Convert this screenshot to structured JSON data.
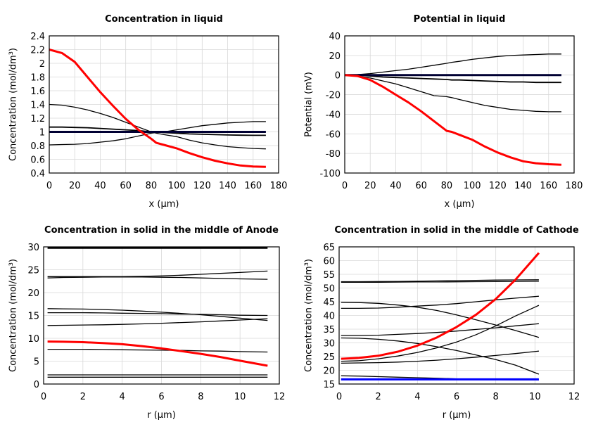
{
  "chart_data": [
    {
      "type": "line",
      "title": "Concentration in liquid",
      "xlabel": "x (µm)",
      "ylabel": "Concentration (mol/dm³)",
      "xlim": [
        0,
        180
      ],
      "ylim": [
        0.4,
        2.4
      ],
      "xticks": [
        0,
        20,
        40,
        60,
        80,
        100,
        120,
        140,
        160,
        180
      ],
      "yticks": [
        0.4,
        0.6,
        0.8,
        1,
        1.2,
        1.4,
        1.6,
        1.8,
        2,
        2.2,
        2.4
      ],
      "grid": true,
      "x": [
        0,
        10,
        20,
        30,
        40,
        50,
        60,
        70,
        80,
        84,
        90,
        100,
        110,
        120,
        130,
        140,
        150,
        160,
        170
      ],
      "series": [
        {
          "color": "#000000",
          "width": 1.3,
          "values": [
            1.4,
            1.39,
            1.36,
            1.32,
            1.27,
            1.21,
            1.14,
            1.07,
            1.0,
            0.98,
            0.96,
            0.93,
            0.88,
            0.84,
            0.81,
            0.785,
            0.77,
            0.758,
            0.752
          ]
        },
        {
          "color": "#000000",
          "width": 1.8,
          "values": [
            1.07,
            1.07,
            1.065,
            1.06,
            1.05,
            1.04,
            1.03,
            1.02,
            1.0,
            1.0,
            0.99,
            0.98,
            0.97,
            0.965,
            0.96,
            0.955,
            0.952,
            0.95,
            0.95
          ]
        },
        {
          "color": "#000000",
          "width": 1.3,
          "values": [
            0.81,
            0.815,
            0.82,
            0.83,
            0.85,
            0.87,
            0.9,
            0.94,
            0.98,
            0.99,
            1.0,
            1.03,
            1.06,
            1.09,
            1.11,
            1.13,
            1.14,
            1.15,
            1.15
          ]
        },
        {
          "color": "#000033",
          "width": 3,
          "values": [
            1,
            1,
            1,
            1,
            1,
            1,
            1,
            1,
            1,
            1,
            1,
            1,
            1,
            1,
            1,
            1,
            1,
            1,
            1
          ]
        },
        {
          "color": "#ff0000",
          "width": 3,
          "values": [
            2.2,
            2.15,
            2.02,
            1.8,
            1.58,
            1.38,
            1.19,
            1.03,
            0.9,
            0.84,
            0.81,
            0.76,
            0.69,
            0.63,
            0.58,
            0.54,
            0.51,
            0.495,
            0.49
          ]
        }
      ]
    },
    {
      "type": "line",
      "title": "Potential in liquid",
      "xlabel": "x (µm)",
      "ylabel": "Potential (mV)",
      "xlim": [
        0,
        180
      ],
      "ylim": [
        -100,
        40
      ],
      "xticks": [
        0,
        20,
        40,
        60,
        80,
        100,
        120,
        140,
        160,
        180
      ],
      "yticks": [
        -100,
        -80,
        -60,
        -40,
        -20,
        0,
        20,
        40
      ],
      "grid": true,
      "x": [
        0,
        10,
        20,
        30,
        40,
        50,
        60,
        70,
        80,
        84,
        90,
        100,
        110,
        120,
        130,
        140,
        150,
        160,
        170
      ],
      "series": [
        {
          "color": "#000000",
          "width": 1.3,
          "values": [
            0,
            0.5,
            1.5,
            3,
            4.5,
            6,
            8,
            10,
            12,
            13,
            14,
            16,
            17.5,
            19,
            20,
            20.5,
            21,
            21.5,
            21.5
          ]
        },
        {
          "color": "#000000",
          "width": 1.8,
          "values": [
            0,
            0,
            -1,
            -2,
            -2.5,
            -3,
            -3.5,
            -4,
            -4.5,
            -5,
            -5,
            -5.5,
            -6,
            -6.5,
            -7,
            -7,
            -7.5,
            -7.5,
            -7.5
          ]
        },
        {
          "color": "#000000",
          "width": 1.3,
          "values": [
            0,
            -1,
            -3,
            -6,
            -9,
            -13,
            -17,
            -21,
            -22,
            -23,
            -25,
            -28,
            -31,
            -33,
            -35,
            -36,
            -37,
            -37.5,
            -37.5
          ]
        },
        {
          "color": "#000033",
          "width": 3,
          "values": [
            0,
            0,
            0,
            0,
            0,
            0,
            0,
            0,
            0,
            0,
            0,
            0,
            0,
            0,
            0,
            0,
            0,
            0,
            0
          ]
        },
        {
          "color": "#ff0000",
          "width": 3,
          "values": [
            0,
            -1,
            -5,
            -12,
            -20,
            -28,
            -37,
            -47,
            -57,
            -58,
            -61,
            -66,
            -73,
            -79,
            -84,
            -88,
            -90,
            -91,
            -91.5
          ]
        }
      ]
    },
    {
      "type": "line",
      "title": "Concentration in solid in the middle of Anode",
      "xlabel": "r (µm)",
      "ylabel": "Concentration (mol/dm³)",
      "xlim": [
        0,
        12
      ],
      "ylim": [
        0,
        30
      ],
      "xticks": [
        0,
        2,
        4,
        6,
        8,
        10,
        12
      ],
      "yticks": [
        0,
        5,
        10,
        15,
        20,
        25,
        30
      ],
      "grid": true,
      "x": [
        0.2,
        1,
        2,
        3,
        4,
        5,
        6,
        7,
        8,
        9,
        10,
        11.4
      ],
      "series": [
        {
          "color": "#000000",
          "width": 3,
          "values": [
            29.8,
            29.8,
            29.8,
            29.8,
            29.8,
            29.8,
            29.8,
            29.8,
            29.8,
            29.8,
            29.8,
            29.8
          ]
        },
        {
          "color": "#000000",
          "width": 1.3,
          "values": [
            23.5,
            23.5,
            23.5,
            23.5,
            23.5,
            23.55,
            23.65,
            23.8,
            24.0,
            24.2,
            24.4,
            24.7
          ]
        },
        {
          "color": "#000000",
          "width": 1.3,
          "values": [
            23.2,
            23.3,
            23.35,
            23.4,
            23.4,
            23.4,
            23.35,
            23.3,
            23.2,
            23.1,
            23.0,
            22.9
          ]
        },
        {
          "color": "#000000",
          "width": 1.3,
          "values": [
            16.5,
            16.45,
            16.4,
            16.3,
            16.15,
            15.95,
            15.7,
            15.45,
            15.15,
            14.8,
            14.4,
            13.9
          ]
        },
        {
          "color": "#000000",
          "width": 1.3,
          "values": [
            15.6,
            15.6,
            15.6,
            15.55,
            15.5,
            15.45,
            15.4,
            15.3,
            15.25,
            15.15,
            15.05,
            15.0
          ]
        },
        {
          "color": "#000000",
          "width": 1.3,
          "values": [
            12.8,
            12.85,
            12.9,
            12.95,
            13.05,
            13.15,
            13.3,
            13.45,
            13.6,
            13.8,
            14.0,
            14.3
          ]
        },
        {
          "color": "#000000",
          "width": 1.3,
          "values": [
            7.6,
            7.6,
            7.6,
            7.55,
            7.5,
            7.45,
            7.4,
            7.35,
            7.25,
            7.2,
            7.1,
            7.0
          ]
        },
        {
          "color": "#000000",
          "width": 1.3,
          "values": [
            2.0,
            2.0,
            2.0,
            2.0,
            2.0,
            2.0,
            2.0,
            2.0,
            2.0,
            2.0,
            2.0,
            2.0
          ]
        },
        {
          "color": "#000000",
          "width": 1.3,
          "values": [
            1.5,
            1.5,
            1.5,
            1.5,
            1.5,
            1.5,
            1.5,
            1.5,
            1.5,
            1.5,
            1.5,
            1.5
          ]
        },
        {
          "color": "#ff0000",
          "width": 3,
          "values": [
            9.3,
            9.25,
            9.15,
            8.95,
            8.7,
            8.3,
            7.8,
            7.2,
            6.6,
            5.9,
            5.1,
            4.0
          ]
        }
      ]
    },
    {
      "type": "line",
      "title": "Concentration in solid in the middle of Cathode",
      "xlabel": "r (µm)",
      "ylabel": "Concentration (mol/dm³)",
      "xlim": [
        0,
        12
      ],
      "ylim": [
        15,
        65
      ],
      "xticks": [
        0,
        2,
        4,
        6,
        8,
        10,
        12
      ],
      "yticks": [
        15,
        20,
        25,
        30,
        35,
        40,
        45,
        50,
        55,
        60,
        65
      ],
      "grid": true,
      "x": [
        0.1,
        1,
        2,
        3,
        4,
        5,
        6,
        7,
        8,
        9,
        10.2
      ],
      "series": [
        {
          "color": "#000000",
          "width": 1.3,
          "values": [
            52.3,
            52.3,
            52.35,
            52.4,
            52.5,
            52.6,
            52.7,
            52.8,
            52.9,
            52.95,
            53.0
          ]
        },
        {
          "color": "#000000",
          "width": 1.3,
          "values": [
            52.1,
            52.1,
            52.1,
            52.15,
            52.2,
            52.2,
            52.25,
            52.3,
            52.35,
            52.4,
            52.5
          ]
        },
        {
          "color": "#000000",
          "width": 1.3,
          "values": [
            44.8,
            44.7,
            44.4,
            43.8,
            43,
            41.8,
            40.2,
            38.4,
            36.5,
            34.5,
            32
          ]
        },
        {
          "color": "#000000",
          "width": 1.3,
          "values": [
            42.6,
            42.6,
            42.7,
            43,
            43.4,
            43.8,
            44.3,
            45,
            45.7,
            46.3,
            47
          ]
        },
        {
          "color": "#000000",
          "width": 1.3,
          "values": [
            23.3,
            23.5,
            24.2,
            25.2,
            26.5,
            28.2,
            30.3,
            33,
            36.2,
            39.8,
            43.7
          ]
        },
        {
          "color": "#000000",
          "width": 1.3,
          "values": [
            32.7,
            32.7,
            32.8,
            33.1,
            33.4,
            33.8,
            34.3,
            34.9,
            35.5,
            36.2,
            37
          ]
        },
        {
          "color": "#000000",
          "width": 1.3,
          "values": [
            31.8,
            31.7,
            31.3,
            30.7,
            29.8,
            28.6,
            27.2,
            25.6,
            23.9,
            21.9,
            18.6
          ]
        },
        {
          "color": "#000000",
          "width": 1.3,
          "values": [
            22.6,
            22.7,
            22.8,
            23,
            23.3,
            23.7,
            24.2,
            24.8,
            25.4,
            26.1,
            27
          ]
        },
        {
          "color": "#000000",
          "width": 1.3,
          "values": [
            18,
            17.9,
            17.7,
            17.5,
            17.3,
            17.1,
            16.9,
            16.7,
            16.6,
            16.5,
            16.5
          ]
        },
        {
          "color": "#0000ff",
          "width": 3,
          "values": [
            16.7,
            16.7,
            16.7,
            16.7,
            16.7,
            16.7,
            16.7,
            16.7,
            16.7,
            16.7,
            16.7
          ]
        },
        {
          "color": "#ff0000",
          "width": 3,
          "values": [
            24.2,
            24.5,
            25.3,
            26.8,
            29,
            32,
            35.8,
            40.3,
            46,
            53,
            62.8
          ]
        }
      ]
    }
  ]
}
